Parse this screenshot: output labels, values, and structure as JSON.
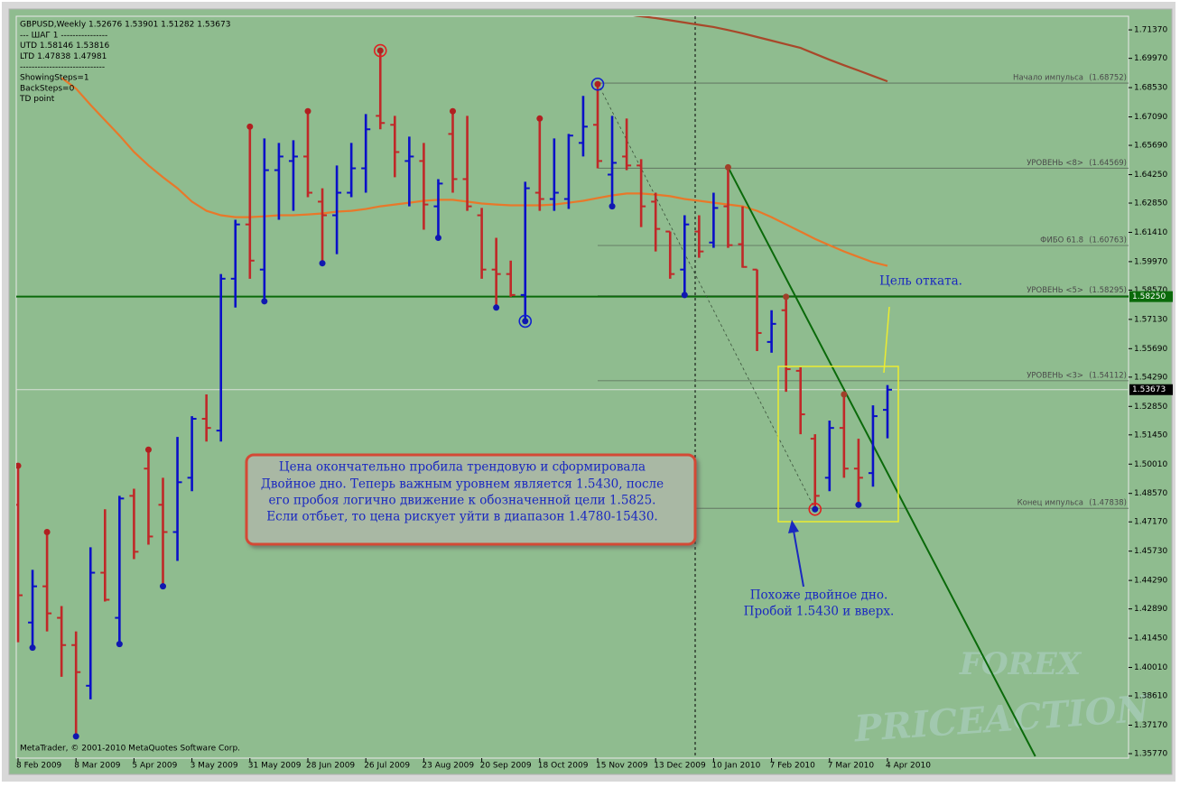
{
  "chart_data": {
    "type": "ohlc",
    "header": [
      "GBPUSD,Weekly  1.52676 1.53901 1.51282 1.53673",
      "---  ШАГ 1  ----------------",
      "UTD  1.58146  1.53816",
      "LTD  1.47838  1.47981",
      "-----------------------------",
      "ShowingSteps=1",
      "BackSteps=0",
      "TD point"
    ],
    "footer": "MetaTrader, © 2001-2010 MetaQuotes Software Corp.",
    "categories": [
      "8 Feb 2009",
      null,
      null,
      null,
      "8 Mar 2009",
      null,
      null,
      null,
      "5 Apr 2009",
      null,
      null,
      null,
      "3 May 2009",
      null,
      null,
      null,
      "31 May 2009",
      null,
      null,
      null,
      "28 Jun 2009",
      null,
      null,
      null,
      "26 Jul 2009",
      null,
      null,
      null,
      "23 Aug 2009",
      null,
      null,
      null,
      "20 Sep 2009",
      null,
      null,
      null,
      "18 Oct 2009",
      null,
      null,
      null,
      "15 Nov 2009",
      null,
      null,
      null,
      "13 Dec 2009",
      null,
      null,
      null,
      "10 Jan 2010",
      null,
      null,
      null,
      "7 Feb 2010",
      null,
      null,
      null,
      "7 Mar 2010",
      null,
      null,
      null,
      "4 Apr 2010"
    ],
    "open": [
      1.4801,
      1.4222,
      1.44,
      1.4245,
      1.4111,
      1.3911,
      1.4467,
      1.4245,
      1.4845,
      1.4979,
      1.4801,
      1.4667,
      1.4934,
      1.5224,
      1.5166,
      1.5913,
      1.618,
      1.5958,
      1.6447,
      1.6492,
      1.6514,
      1.6292,
      1.6225,
      1.6336,
      1.6456,
      1.6714,
      1.667,
      1.6492,
      1.6492,
      1.6269,
      1.6625,
      1.6403,
      1.6225,
      1.5958,
      1.5936,
      1.5833,
      1.6336,
      1.6305,
      1.6305,
      1.6581,
      1.667,
      1.6425,
      1.6514,
      1.647,
      1.6292,
      1.6145,
      1.5958,
      1.6145,
      1.6091,
      1.6269,
      1.6083,
      1.5958,
      1.5602,
      1.5758,
      1.546,
      1.5126,
      1.4934,
      1.5179,
      1.4979,
      1.4957,
      1.5268
    ],
    "high": [
      1.4993,
      1.4481,
      1.4667,
      1.4303,
      1.4178,
      1.4592,
      1.4779,
      1.4845,
      1.488,
      1.5072,
      1.4934,
      1.5135,
      1.5237,
      1.5344,
      1.5936,
      1.6203,
      1.6661,
      1.6603,
      1.6581,
      1.6594,
      1.6737,
      1.6358,
      1.647,
      1.6581,
      1.6723,
      1.7035,
      1.6714,
      1.6612,
      1.6581,
      1.6403,
      1.6737,
      1.6714,
      1.6261,
      1.6114,
      1.6002,
      1.639,
      1.6701,
      1.6603,
      1.6625,
      1.6812,
      1.687,
      1.6714,
      1.6701,
      1.6501,
      1.6336,
      1.6145,
      1.6225,
      1.6225,
      1.6336,
      1.6461,
      1.6269,
      1.5958,
      1.5758,
      1.5824,
      1.5477,
      1.5148,
      1.5215,
      1.5344,
      1.5126,
      1.529,
      1.539
    ],
    "low": [
      1.4125,
      1.4098,
      1.4178,
      1.3955,
      1.3662,
      1.3844,
      1.4325,
      1.4116,
      1.4534,
      1.4605,
      1.44,
      1.4525,
      1.4868,
      1.5112,
      1.5112,
      1.5771,
      1.5913,
      1.5802,
      1.6203,
      1.6247,
      1.6314,
      1.5989,
      1.6034,
      1.6314,
      1.6336,
      1.6648,
      1.6412,
      1.6269,
      1.6154,
      1.6114,
      1.6336,
      1.6247,
      1.5913,
      1.5771,
      1.5824,
      1.5704,
      1.6247,
      1.6247,
      1.6256,
      1.6514,
      1.6456,
      1.6269,
      1.6447,
      1.6167,
      1.6047,
      1.5913,
      1.5833,
      1.6016,
      1.6065,
      1.6065,
      1.5967,
      1.5557,
      1.5549,
      1.5357,
      1.5148,
      1.4779,
      1.4868,
      1.4934,
      1.4801,
      1.489,
      1.5128
    ],
    "close": [
      1.4356,
      1.44,
      1.4267,
      1.4111,
      1.3978,
      1.4467,
      1.4334,
      1.4832,
      1.457,
      1.4645,
      1.4667,
      1.4912,
      1.5224,
      1.5179,
      1.5913,
      1.618,
      1.6002,
      1.6447,
      1.6514,
      1.6514,
      1.6336,
      1.6225,
      1.6336,
      1.6456,
      1.6648,
      1.6679,
      1.6536,
      1.6514,
      1.6278,
      1.6381,
      1.6403,
      1.6269,
      1.5958,
      1.5936,
      1.5833,
      1.6358,
      1.6305,
      1.6336,
      1.6617,
      1.6661,
      1.6492,
      1.6483,
      1.647,
      1.6269,
      1.6158,
      1.5936,
      1.618,
      1.6047,
      1.6261,
      1.6078,
      1.5971,
      1.5646,
      1.5691,
      1.5468,
      1.5246,
      1.4845,
      1.5179,
      1.4979,
      1.4934,
      1.5237,
      1.5367
    ],
    "up_color": "#0a10c8",
    "down_color": "#c02828",
    "ylim": [
      1.3555,
      1.7204
    ],
    "yticks": [
      {
        "value": 1.7137,
        "label": "1.71370"
      },
      {
        "value": 1.6997,
        "label": "1.69970"
      },
      {
        "value": 1.6853,
        "label": "1.68530"
      },
      {
        "value": 1.6709,
        "label": "1.67090"
      },
      {
        "value": 1.6569,
        "label": "1.65690"
      },
      {
        "value": 1.6425,
        "label": "1.64250"
      },
      {
        "value": 1.6285,
        "label": "1.62850"
      },
      {
        "value": 1.6141,
        "label": "1.61410"
      },
      {
        "value": 1.5997,
        "label": "1.59970"
      },
      {
        "value": 1.5857,
        "label": "1.58570"
      },
      {
        "value": 1.5713,
        "label": "1.57130"
      },
      {
        "value": 1.5569,
        "label": "1.55690"
      },
      {
        "value": 1.5429,
        "label": "1.54290"
      },
      {
        "value": 1.5285,
        "label": "1.52850"
      },
      {
        "value": 1.5145,
        "label": "1.51450"
      },
      {
        "value": 1.5001,
        "label": "1.50010"
      },
      {
        "value": 1.4857,
        "label": "1.48570"
      },
      {
        "value": 1.4717,
        "label": "1.47170"
      },
      {
        "value": 1.4573,
        "label": "1.45730"
      },
      {
        "value": 1.4429,
        "label": "1.44290"
      },
      {
        "value": 1.4289,
        "label": "1.42890"
      },
      {
        "value": 1.4145,
        "label": "1.41450"
      },
      {
        "value": 1.4001,
        "label": "1.40010"
      },
      {
        "value": 1.3861,
        "label": "1.38610"
      },
      {
        "value": 1.3717,
        "label": "1.37170"
      },
      {
        "value": 1.3577,
        "label": "1.35770"
      }
    ],
    "overlays": [
      {
        "color": "#e8782a",
        "values": [
          null,
          null,
          null,
          1.6901,
          1.6848,
          1.6768,
          1.6692,
          1.6617,
          1.6537,
          1.647,
          1.6412,
          1.6358,
          1.6292,
          1.6247,
          1.6225,
          1.6216,
          1.6216,
          1.622,
          1.6225,
          1.6225,
          1.6229,
          1.6234,
          1.6243,
          1.6247,
          1.6256,
          1.6269,
          1.6278,
          1.6287,
          1.6296,
          1.6301,
          1.6301,
          1.6292,
          1.6283,
          1.6278,
          1.6274,
          1.6274,
          1.6274,
          1.6278,
          1.6287,
          1.6296,
          1.631,
          1.6323,
          1.6332,
          1.6332,
          1.6327,
          1.6319,
          1.6305,
          1.6296,
          1.6287,
          1.6278,
          1.6269,
          1.6247,
          1.6216,
          1.618,
          1.6145,
          1.6109,
          1.6078,
          1.6047,
          1.602,
          1.5994,
          1.5976
        ]
      },
      {
        "color": "#a8482a",
        "values": [
          null,
          null,
          null,
          null,
          null,
          null,
          null,
          null,
          null,
          null,
          null,
          null,
          null,
          null,
          null,
          null,
          null,
          null,
          null,
          null,
          null,
          null,
          null,
          null,
          null,
          null,
          null,
          null,
          null,
          null,
          null,
          null,
          null,
          null,
          null,
          null,
          null,
          null,
          null,
          null,
          null,
          null,
          1.7213,
          1.7204,
          1.7195,
          1.7184,
          1.7173,
          1.7162,
          1.7151,
          1.7136,
          1.712,
          1.7102,
          1.7084,
          1.7066,
          1.7048,
          1.7019,
          1.699,
          1.6963,
          1.6937,
          1.691,
          1.6884
        ]
      }
    ],
    "levels": [
      {
        "label": "Начало импульса",
        "value": 1.68752,
        "value_label": "(1.68752)"
      },
      {
        "label": "УРОВЕНЬ <8>",
        "value": 1.64569,
        "value_label": "(1.64569)"
      },
      {
        "label": "ФИБО 61.8",
        "value": 1.60763,
        "value_label": "(1.60763)"
      },
      {
        "label": "УРОВЕНЬ <5>",
        "value": 1.58295,
        "value_label": "(1.58295)"
      },
      {
        "label": "УРОВЕНЬ <3>",
        "value": 1.54112,
        "value_label": "(1.54112)"
      },
      {
        "label": "Конец импульса",
        "value": 1.47838,
        "value_label": "(1.47838)"
      }
    ],
    "price_lines": [
      {
        "value": 1.5825,
        "label": "1.58250",
        "color": "#0a6a0a",
        "tag": "#0a6a0a"
      },
      {
        "value": 1.53673,
        "label": "1.53673",
        "color": "#d8e0d8",
        "tag": "#000000"
      }
    ],
    "trendlines": [
      {
        "color": "#0a6a0a",
        "x": [
          49,
          70.2
        ],
        "y": [
          1.6461,
          1.3564
        ]
      },
      {
        "color": "#3a503a",
        "dashed": true,
        "x": [
          40,
          55
        ],
        "y": [
          1.6875,
          1.4779
        ]
      }
    ],
    "fractals": [
      {
        "bar": 0,
        "at": "high",
        "color": "#b02020"
      },
      {
        "bar": 2,
        "at": "high",
        "color": "#b02020"
      },
      {
        "bar": 9,
        "at": "high",
        "color": "#b02020"
      },
      {
        "bar": 16,
        "at": "high",
        "color": "#b02020"
      },
      {
        "bar": 20,
        "at": "high",
        "color": "#b02020"
      },
      {
        "bar": 25,
        "at": "high",
        "color": "#b02020",
        "ring": "#e02020"
      },
      {
        "bar": 30,
        "at": "high",
        "color": "#b02020"
      },
      {
        "bar": 36,
        "at": "high",
        "color": "#b02020"
      },
      {
        "bar": 40,
        "at": "high",
        "color": "#b02020",
        "ring": "#1020d0"
      },
      {
        "bar": 49,
        "at": "high",
        "color": "#a0402a"
      },
      {
        "bar": 53,
        "at": "high",
        "color": "#a0402a"
      },
      {
        "bar": 57,
        "at": "high",
        "color": "#a0402a"
      },
      {
        "bar": 1,
        "at": "low",
        "color": "#1018b0"
      },
      {
        "bar": 4,
        "at": "low",
        "color": "#1018b0"
      },
      {
        "bar": 7,
        "at": "low",
        "color": "#1018b0"
      },
      {
        "bar": 10,
        "at": "low",
        "color": "#1018b0"
      },
      {
        "bar": 17,
        "at": "low",
        "color": "#1018b0"
      },
      {
        "bar": 21,
        "at": "low",
        "color": "#1018b0"
      },
      {
        "bar": 29,
        "at": "low",
        "color": "#1018b0"
      },
      {
        "bar": 33,
        "at": "low",
        "color": "#1018b0"
      },
      {
        "bar": 35,
        "at": "low",
        "color": "#1018b0",
        "ring": "#1020d0"
      },
      {
        "bar": 41,
        "at": "low",
        "color": "#1018b0"
      },
      {
        "bar": 46,
        "at": "low",
        "color": "#1018b0"
      },
      {
        "bar": 55,
        "at": "low",
        "color": "#1018b0",
        "ring": "#e02020"
      },
      {
        "bar": 58,
        "at": "low",
        "color": "#1018b0"
      }
    ],
    "annotations": {
      "main": [
        "Цена окончательно пробила трендовую и сформировала",
        "Двойное дно. Теперь важным уровнем является 1.5430, после",
        "его пробоя логично движение к обозначенной цели 1.5825.",
        "Если отбьет, то цена рискует уйти в диапазон 1.4780-15430."
      ],
      "double_bottom": [
        "Похоже двойное дно.",
        "Пробой 1.5430 и вверх."
      ],
      "target": "Цель отката."
    },
    "watermark": [
      "FOREX",
      "PRICEACTION"
    ]
  }
}
